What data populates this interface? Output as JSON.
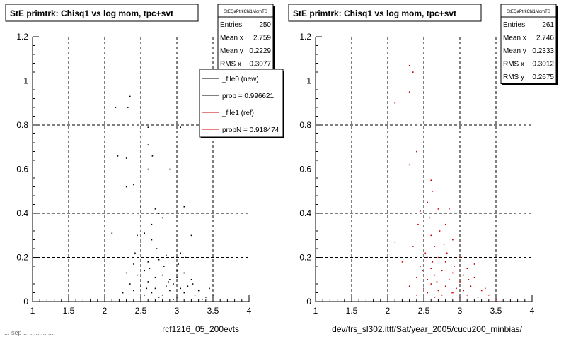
{
  "footer_text": "... sep ... ......... ....",
  "chart_data": [
    {
      "type": "scatter",
      "title": "StE primtrk: Chisq1 vs log mom, tpc+svt",
      "xlabel": "rcf1216_05_200evts",
      "ylabel": "",
      "xlim": [
        1,
        4
      ],
      "ylim": [
        0,
        1.2
      ],
      "xticks": [
        "1",
        "1.5",
        "2",
        "2.5",
        "3",
        "3.5",
        "4"
      ],
      "yticks": [
        "0",
        "0.2",
        "0.4",
        "0.6",
        "0.8",
        "1",
        "1.2"
      ],
      "grid": true,
      "point_color": "#000000",
      "stats_box": {
        "title": "StEQaPtrkChi1MomTS",
        "rows": [
          {
            "label": "Entries",
            "value": "250"
          },
          {
            "label": "Mean x",
            "value": "2.759"
          },
          {
            "label": "Mean y",
            "value": "0.2229"
          },
          {
            "label": "RMS x",
            "value": "0.3077"
          }
        ]
      },
      "legend": {
        "placement": "top-right",
        "entries": [
          {
            "label": "_file0 (new)",
            "color": "#000000"
          },
          {
            "label": "prob = 0.996621",
            "color": "#000000"
          },
          {
            "label": "_file1 (ref)",
            "color": "#cc0000"
          },
          {
            "label": "probN = 0.918474",
            "color": "#cc0000"
          }
        ]
      },
      "points": [
        [
          2.15,
          0.88
        ],
        [
          2.35,
          0.93
        ],
        [
          2.32,
          0.88
        ],
        [
          2.18,
          0.66
        ],
        [
          2.3,
          0.65
        ],
        [
          2.6,
          0.79
        ],
        [
          2.6,
          0.71
        ],
        [
          2.4,
          0.53
        ],
        [
          2.3,
          0.52
        ],
        [
          2.6,
          0.6
        ],
        [
          2.9,
          0.6
        ],
        [
          3.05,
          0.79
        ],
        [
          2.7,
          0.42
        ],
        [
          2.75,
          0.4
        ],
        [
          2.65,
          0.35
        ],
        [
          2.8,
          0.38
        ],
        [
          2.1,
          0.31
        ],
        [
          2.55,
          0.31
        ],
        [
          3.1,
          0.43
        ],
        [
          2.45,
          0.3
        ],
        [
          3.2,
          0.3
        ],
        [
          2.5,
          0.27
        ],
        [
          2.65,
          0.28
        ],
        [
          2.85,
          0.21
        ],
        [
          2.95,
          0.2
        ],
        [
          3.05,
          0.22
        ],
        [
          2.4,
          0.17
        ],
        [
          2.6,
          0.18
        ],
        [
          2.75,
          0.19
        ],
        [
          2.3,
          0.13
        ],
        [
          2.45,
          0.12
        ],
        [
          2.55,
          0.14
        ],
        [
          2.7,
          0.11
        ],
        [
          2.8,
          0.12
        ],
        [
          2.9,
          0.1
        ],
        [
          3.0,
          0.11
        ],
        [
          3.1,
          0.13
        ],
        [
          3.2,
          0.1
        ],
        [
          2.35,
          0.08
        ],
        [
          2.5,
          0.07
        ],
        [
          2.6,
          0.09
        ],
        [
          2.7,
          0.06
        ],
        [
          2.85,
          0.07
        ],
        [
          2.95,
          0.08
        ],
        [
          3.05,
          0.06
        ],
        [
          3.15,
          0.07
        ],
        [
          3.3,
          0.05
        ],
        [
          2.25,
          0.04
        ],
        [
          2.4,
          0.05
        ],
        [
          2.55,
          0.03
        ],
        [
          2.65,
          0.04
        ],
        [
          2.8,
          0.03
        ],
        [
          2.9,
          0.05
        ],
        [
          3.0,
          0.02
        ],
        [
          3.1,
          0.04
        ],
        [
          3.25,
          0.03
        ],
        [
          3.4,
          0.02
        ],
        [
          3.5,
          0.03
        ],
        [
          2.5,
          0.02
        ],
        [
          2.75,
          0.02
        ],
        [
          2.95,
          0.01
        ],
        [
          3.35,
          0.01
        ],
        [
          2.62,
          0.15
        ],
        [
          2.82,
          0.16
        ],
        [
          3.02,
          0.17
        ],
        [
          2.42,
          0.22
        ],
        [
          2.72,
          0.24
        ],
        [
          3.12,
          0.2
        ],
        [
          2.5,
          0.43
        ],
        [
          2.66,
          0.66
        ],
        [
          3.0,
          0.14
        ],
        [
          2.88,
          0.09
        ],
        [
          2.58,
          0.06
        ],
        [
          3.22,
          0.08
        ],
        [
          3.45,
          0.06
        ]
      ]
    },
    {
      "type": "scatter",
      "title": "StE primtrk: Chisq1 vs log mom, tpc+svt",
      "xlabel": "dev/trs_sl302.ittf/Sat/year_2005/cucu200_minbias/",
      "ylabel": "",
      "xlim": [
        1,
        4
      ],
      "ylim": [
        0,
        1.2
      ],
      "xticks": [
        "1",
        "1.5",
        "2",
        "2.5",
        "3",
        "3.5",
        "4"
      ],
      "yticks": [
        "0",
        "0.2",
        "0.4",
        "0.6",
        "0.8",
        "1",
        "1.2"
      ],
      "grid": true,
      "point_color": "#cc0000",
      "stats_box": {
        "title": "StEQaPtrkChi1MomTS",
        "rows": [
          {
            "label": "Entries",
            "value": "261"
          },
          {
            "label": "Mean x",
            "value": "2.746"
          },
          {
            "label": "Mean y",
            "value": "0.2333"
          },
          {
            "label": "RMS x",
            "value": "0.3012"
          },
          {
            "label": "RMS y",
            "value": "0.2675"
          }
        ]
      },
      "points": [
        [
          2.3,
          1.07
        ],
        [
          2.35,
          1.04
        ],
        [
          2.3,
          0.95
        ],
        [
          2.1,
          0.9
        ],
        [
          2.5,
          0.75
        ],
        [
          2.4,
          0.68
        ],
        [
          2.3,
          0.62
        ],
        [
          2.6,
          0.55
        ],
        [
          2.55,
          0.45
        ],
        [
          2.45,
          0.41
        ],
        [
          2.7,
          0.42
        ],
        [
          2.8,
          0.35
        ],
        [
          2.6,
          0.3
        ],
        [
          2.5,
          0.28
        ],
        [
          2.9,
          0.28
        ],
        [
          2.65,
          0.25
        ],
        [
          2.35,
          0.25
        ],
        [
          2.1,
          0.27
        ],
        [
          2.55,
          0.2
        ],
        [
          2.7,
          0.2
        ],
        [
          2.8,
          0.18
        ],
        [
          3.0,
          0.2
        ],
        [
          2.45,
          0.16
        ],
        [
          2.6,
          0.15
        ],
        [
          2.75,
          0.14
        ],
        [
          2.9,
          0.13
        ],
        [
          3.1,
          0.15
        ],
        [
          2.4,
          0.11
        ],
        [
          2.55,
          0.1
        ],
        [
          2.65,
          0.12
        ],
        [
          2.85,
          0.1
        ],
        [
          3.0,
          0.09
        ],
        [
          3.2,
          0.11
        ],
        [
          2.3,
          0.07
        ],
        [
          2.5,
          0.06
        ],
        [
          2.6,
          0.08
        ],
        [
          2.7,
          0.05
        ],
        [
          2.8,
          0.07
        ],
        [
          2.95,
          0.06
        ],
        [
          3.05,
          0.05
        ],
        [
          3.15,
          0.07
        ],
        [
          3.3,
          0.05
        ],
        [
          2.4,
          0.03
        ],
        [
          2.55,
          0.04
        ],
        [
          2.65,
          0.02
        ],
        [
          2.75,
          0.03
        ],
        [
          2.9,
          0.04
        ],
        [
          3.0,
          0.02
        ],
        [
          3.1,
          0.03
        ],
        [
          3.25,
          0.02
        ],
        [
          3.4,
          0.03
        ],
        [
          3.5,
          0.01
        ],
        [
          2.62,
          0.18
        ],
        [
          2.82,
          0.22
        ],
        [
          2.72,
          0.32
        ],
        [
          2.58,
          0.38
        ],
        [
          3.05,
          0.12
        ],
        [
          2.48,
          0.14
        ],
        [
          2.92,
          0.16
        ],
        [
          3.35,
          0.06
        ],
        [
          2.68,
          0.09
        ],
        [
          2.78,
          0.26
        ],
        [
          2.88,
          0.04
        ],
        [
          3.12,
          0.1
        ],
        [
          2.52,
          0.22
        ],
        [
          2.2,
          0.18
        ],
        [
          2.85,
          0.42
        ],
        [
          2.62,
          0.5
        ],
        [
          3.2,
          0.17
        ],
        [
          2.42,
          0.35
        ]
      ]
    }
  ]
}
